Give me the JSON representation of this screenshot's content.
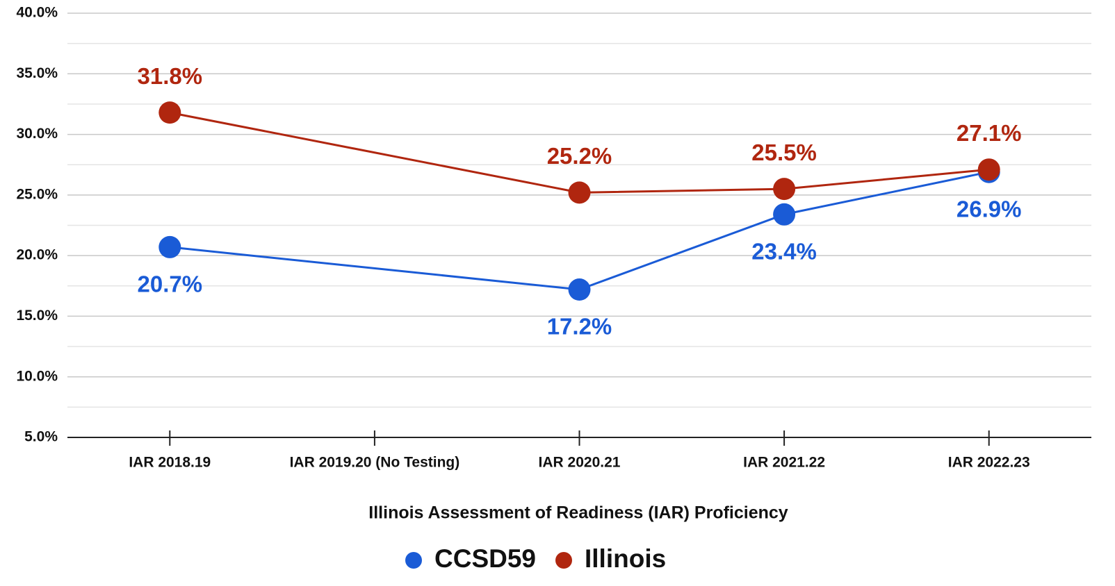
{
  "chart_data": {
    "type": "line",
    "x_label": "Illinois Assessment of Readiness (IAR) Proficiency",
    "categories": [
      "IAR 2018.19",
      "IAR 2019.20 (No Testing)",
      "IAR 2020.21",
      "IAR 2021.22",
      "IAR  2022.23"
    ],
    "series": [
      {
        "name": "CCSD59",
        "color": "#1a5bd6",
        "values": [
          20.7,
          null,
          17.2,
          23.4,
          26.9
        ],
        "value_labels": [
          "20.7%",
          null,
          "17.2%",
          "23.4%",
          "26.9%"
        ],
        "label_position": "below"
      },
      {
        "name": "Illinois",
        "color": "#b0260f",
        "values": [
          31.8,
          null,
          25.2,
          25.5,
          27.1
        ],
        "value_labels": [
          "31.8%",
          null,
          "25.2%",
          "25.5%",
          "27.1%"
        ],
        "label_position": "above"
      }
    ],
    "connect_gaps": true,
    "ylim": [
      5,
      40
    ],
    "yticks": [
      {
        "value": 5,
        "label": "5.0%"
      },
      {
        "value": 10,
        "label": "10.0%"
      },
      {
        "value": 15,
        "label": "15.0%"
      },
      {
        "value": 20,
        "label": "20.0%"
      },
      {
        "value": 25,
        "label": "25.0%"
      },
      {
        "value": 30,
        "label": "30.0%"
      },
      {
        "value": 35,
        "label": "35.0%"
      },
      {
        "value": 40,
        "label": "40.0%"
      }
    ],
    "minor_yticks": [
      7.5,
      12.5,
      17.5,
      22.5,
      27.5,
      32.5,
      37.5
    ],
    "grid": true,
    "legend": "bottom"
  }
}
